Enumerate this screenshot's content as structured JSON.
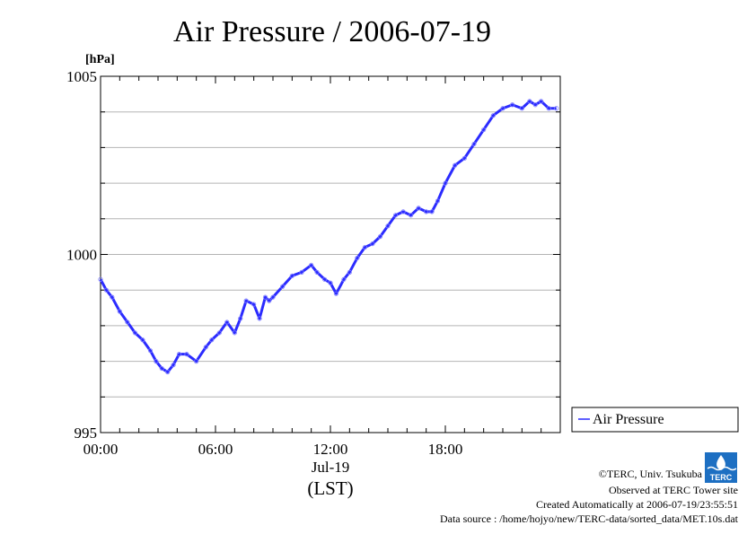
{
  "chart_data": {
    "type": "line",
    "title": "Air Pressure / 2006-07-19",
    "ylabel": "[hPa]",
    "xlabel": "(LST)",
    "date_label": "Jul-19",
    "ylim": [
      995,
      1005
    ],
    "xlim": [
      0,
      24
    ],
    "y_ticks": [
      "995",
      "1000",
      "1005"
    ],
    "x_ticks": [
      "00:00",
      "06:00",
      "12:00",
      "18:00"
    ],
    "grid": "horizontal",
    "legend_position": "right",
    "line_color": "#2b2bff",
    "series": [
      {
        "name": "Air Pressure",
        "x": [
          0,
          0.3,
          0.6,
          1.0,
          1.4,
          1.8,
          2.2,
          2.6,
          2.9,
          3.2,
          3.5,
          3.8,
          4.1,
          4.5,
          5.0,
          5.5,
          5.8,
          6.2,
          6.6,
          7.0,
          7.3,
          7.6,
          8.0,
          8.3,
          8.6,
          8.8,
          9.0,
          9.5,
          10.0,
          10.5,
          11.0,
          11.3,
          11.7,
          12.0,
          12.3,
          12.7,
          13.0,
          13.4,
          13.8,
          14.2,
          14.6,
          15.0,
          15.4,
          15.8,
          16.2,
          16.6,
          17.0,
          17.3,
          17.6,
          18.0,
          18.5,
          19.0,
          19.5,
          20.0,
          20.5,
          21.0,
          21.5,
          22.0,
          22.4,
          22.7,
          23.0,
          23.4,
          23.8
        ],
        "y": [
          999.3,
          999.0,
          998.8,
          998.4,
          998.1,
          997.8,
          997.6,
          997.3,
          997.0,
          996.8,
          996.7,
          996.9,
          997.2,
          997.2,
          997.0,
          997.4,
          997.6,
          997.8,
          998.1,
          997.8,
          998.2,
          998.7,
          998.6,
          998.2,
          998.8,
          998.7,
          998.8,
          999.1,
          999.4,
          999.5,
          999.7,
          999.5,
          999.3,
          999.2,
          998.9,
          999.3,
          999.5,
          999.9,
          1000.2,
          1000.3,
          1000.5,
          1000.8,
          1001.1,
          1001.2,
          1001.1,
          1001.3,
          1001.2,
          1001.2,
          1001.5,
          1002.0,
          1002.5,
          1002.7,
          1003.1,
          1003.5,
          1003.9,
          1004.1,
          1004.2,
          1004.1,
          1004.3,
          1004.2,
          1004.3,
          1004.1,
          1004.1
        ]
      }
    ]
  },
  "footer": {
    "copyright": "©TERC, Univ. Tsukuba",
    "observed": "Observed at TERC Tower site",
    "created": "Created Automatically at 2006-07-19/23:55:51",
    "source": "Data source : /home/hojyo/new/TERC-data/sorted_data/MET.10s.dat"
  },
  "logo": {
    "text": "TERC",
    "color": "#1d6fc2"
  }
}
